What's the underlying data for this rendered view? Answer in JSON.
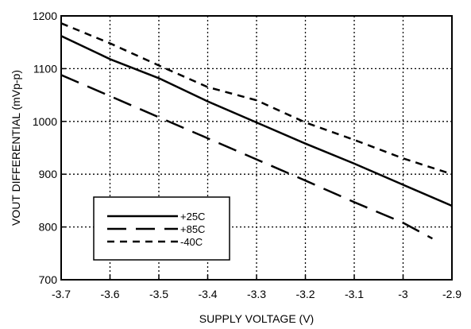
{
  "chart_data": {
    "type": "line",
    "title": "",
    "xlabel": "SUPPLY VOLTAGE (V)",
    "ylabel": "VOUT DIFFERENTIAL (mVp-p)",
    "xlim": [
      -3.7,
      -2.9
    ],
    "ylim": [
      700,
      1200
    ],
    "x_ticks": [
      -3.7,
      -3.6,
      -3.5,
      -3.4,
      -3.3,
      -3.2,
      -3.1,
      -3.0,
      -2.9
    ],
    "x_tick_labels": [
      "-3.7",
      "-3.6",
      "-3.5",
      "-3.4",
      "-3.3",
      "-3.2",
      "-3.1",
      "-3",
      "-2.9"
    ],
    "y_ticks": [
      700,
      800,
      900,
      1000,
      1100,
      1200
    ],
    "y_tick_labels": [
      "700",
      "800",
      "900",
      "1000",
      "1100",
      "1200"
    ],
    "grid": true,
    "legend_position": "bottom-left",
    "series": [
      {
        "name": "+25C",
        "style": "solid",
        "x": [
          -3.7,
          -3.6,
          -3.5,
          -3.4,
          -3.3,
          -3.2,
          -3.1,
          -3.0,
          -2.9
        ],
        "y": [
          1162,
          1118,
          1082,
          1038,
          998,
          958,
          920,
          880,
          840
        ]
      },
      {
        "name": "+85C",
        "style": "long-dash",
        "x": [
          -3.7,
          -3.6,
          -3.5,
          -3.4,
          -3.3,
          -3.2,
          -3.1,
          -3.0,
          -2.94
        ],
        "y": [
          1088,
          1048,
          1008,
          968,
          928,
          888,
          847,
          808,
          778
        ]
      },
      {
        "name": "-40C",
        "style": "short-dash",
        "x": [
          -3.7,
          -3.6,
          -3.5,
          -3.4,
          -3.3,
          -3.2,
          -3.1,
          -3.0,
          -2.9
        ],
        "y": [
          1186,
          1148,
          1106,
          1065,
          1040,
          998,
          965,
          930,
          900
        ]
      }
    ]
  }
}
